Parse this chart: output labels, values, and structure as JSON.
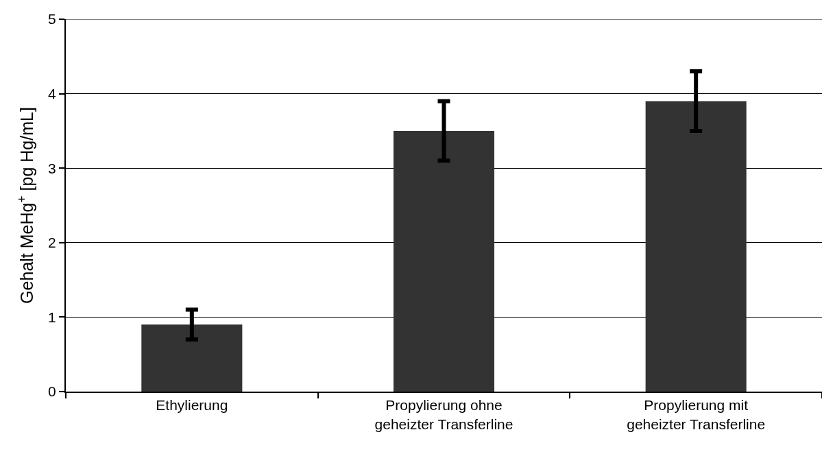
{
  "chart_data": {
    "type": "bar",
    "ylabel": "Gehalt MeHg$^{+}$ [pg Hg/mL]",
    "categories": [
      "Ethylierung",
      "Propylierung ohne\ngeheizter Transferline",
      "Propylierung mit\ngeheizter Transferline"
    ],
    "values": [
      0.9,
      3.5,
      3.9
    ],
    "errors": [
      0.2,
      0.4,
      0.4
    ],
    "color": "#333333",
    "ylim": [
      0,
      5
    ],
    "yticks": [
      0,
      1,
      2,
      3,
      4,
      5
    ],
    "grid": "y"
  }
}
